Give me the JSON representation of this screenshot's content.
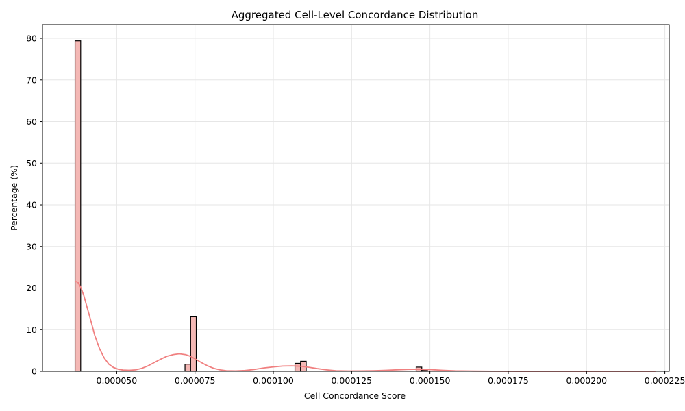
{
  "chart_data": {
    "type": "bar",
    "title": "Aggregated Cell-Level Concordance Distribution",
    "xlabel": "Cell Concordance Score",
    "ylabel": "Percentage (%)",
    "xlim": [
      2.63e-05,
      0.0002264
    ],
    "ylim": [
      0,
      83.3
    ],
    "x_ticks": [
      5e-05,
      7.5e-05,
      0.0001,
      0.000125,
      0.00015,
      0.000175,
      0.0002,
      0.000225
    ],
    "x_tick_labels": [
      "0.000050",
      "0.000075",
      "0.000100",
      "0.000125",
      "0.000150",
      "0.000175",
      "0.000200",
      "0.000225"
    ],
    "y_ticks": [
      0,
      10,
      20,
      30,
      40,
      50,
      60,
      70,
      80
    ],
    "y_tick_labels": [
      "0",
      "10",
      "20",
      "30",
      "40",
      "50",
      "60",
      "70",
      "80"
    ],
    "grid": true,
    "bins": [
      {
        "x0": 3.67e-05,
        "x1": 3.85e-05,
        "value": 79.4
      },
      {
        "x0": 7.18e-05,
        "x1": 7.36e-05,
        "value": 1.7
      },
      {
        "x0": 7.36e-05,
        "x1": 7.54e-05,
        "value": 13.1
      },
      {
        "x0": 0.0001069,
        "x1": 0.0001087,
        "value": 1.9
      },
      {
        "x0": 0.0001087,
        "x1": 0.0001105,
        "value": 2.4
      },
      {
        "x0": 0.0001456,
        "x1": 0.0001474,
        "value": 1.0
      },
      {
        "x0": 0.0001474,
        "x1": 0.0001492,
        "value": 0.3
      }
    ],
    "kde": {
      "x": [
        3.67e-05,
        3.76e-05,
        3.85e-05,
        3.95e-05,
        4.05e-05,
        4.18e-05,
        4.3e-05,
        4.45e-05,
        4.6e-05,
        4.75e-05,
        4.9e-05,
        5.05e-05,
        5.2e-05,
        5.4e-05,
        5.6e-05,
        5.8e-05,
        6e-05,
        6.2e-05,
        6.4e-05,
        6.6e-05,
        6.8e-05,
        7e-05,
        7.2e-05,
        7.35e-05,
        7.5e-05,
        7.7e-05,
        7.9e-05,
        8.1e-05,
        8.3e-05,
        8.5e-05,
        8.8e-05,
        9.1e-05,
        9.4e-05,
        9.7e-05,
        0.0001,
        0.000103,
        0.000106,
        0.000109,
        0.0001115,
        0.000114,
        0.000117,
        0.00012,
        0.000124,
        0.000128,
        0.000132,
        0.000136,
        0.00014,
        0.000143,
        0.0001465,
        0.00015,
        0.000154,
        0.000158,
        0.000164,
        0.00017,
        0.00018,
        0.00019,
        0.0002,
        0.00021,
        0.000222
      ],
      "y": [
        21.6,
        21.4,
        20.2,
        18.2,
        15.5,
        12.0,
        8.6,
        5.5,
        3.2,
        1.7,
        0.9,
        0.5,
        0.3,
        0.25,
        0.35,
        0.7,
        1.3,
        2.1,
        2.9,
        3.6,
        4.0,
        4.2,
        4.0,
        3.6,
        3.0,
        2.1,
        1.3,
        0.7,
        0.35,
        0.15,
        0.1,
        0.2,
        0.45,
        0.8,
        1.05,
        1.25,
        1.3,
        1.2,
        0.95,
        0.65,
        0.35,
        0.15,
        0.08,
        0.1,
        0.15,
        0.25,
        0.38,
        0.45,
        0.5,
        0.42,
        0.25,
        0.12,
        0.05,
        0.02,
        0.01,
        0.01,
        0.01,
        0.01,
        0.01
      ]
    }
  }
}
